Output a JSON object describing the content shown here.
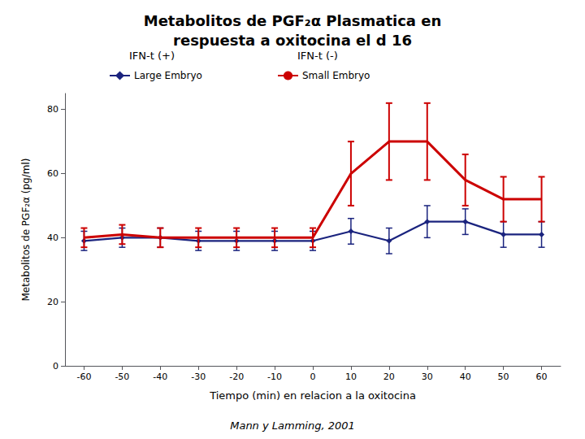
{
  "chart_data": {
    "type": "line",
    "title": "Metabolitos de PGF₂α Plasmatica en\nrespuesta a oxitocina el d 16",
    "xlabel": "Tiempo (min) en relacion a la oxitocina",
    "ylabel": "Metabolitos de PGF₂α (pg/ml)",
    "x": [
      -60,
      -50,
      -40,
      -30,
      -20,
      -10,
      0,
      10,
      20,
      30,
      40,
      50,
      60
    ],
    "series": [
      {
        "name": "Large Embryo",
        "color": "#1a237e",
        "marker": "diamond",
        "values": [
          39,
          40,
          40,
          39,
          39,
          39,
          39,
          42,
          39,
          45,
          45,
          41,
          41
        ],
        "errors": [
          3,
          3,
          3,
          3,
          3,
          3,
          3,
          4,
          4,
          5,
          4,
          4,
          4
        ]
      },
      {
        "name": "Small Embryo",
        "color": "#cc0000",
        "values": [
          40,
          41,
          40,
          40,
          40,
          40,
          40,
          60,
          70,
          70,
          58,
          52,
          52
        ],
        "errors": [
          3,
          3,
          3,
          3,
          3,
          3,
          3,
          10,
          12,
          12,
          8,
          7,
          7
        ]
      }
    ],
    "xlim": [
      -65,
      65
    ],
    "ylim": [
      0,
      85
    ],
    "xticks": [
      -60,
      -50,
      -40,
      -30,
      -20,
      -10,
      0,
      10,
      20,
      30,
      40,
      50,
      60
    ],
    "yticks": [
      0,
      20,
      40,
      60,
      80
    ],
    "grid": false,
    "legend": "top",
    "annotations": [
      "IFN-t (+)",
      "IFN-t (-)",
      "Mann y Lamming, 2001"
    ]
  }
}
